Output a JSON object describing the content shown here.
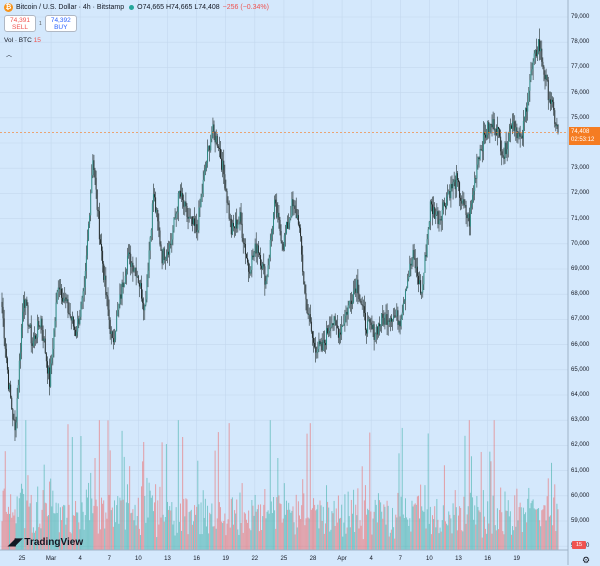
{
  "header": {
    "title": "Bitcoin / U.S. Dollar · 4h · Bitstamp",
    "logo_glyph": "₿",
    "ohlc": "O74,665 H74,665 L74,408",
    "change": "−256 (−0.34%)"
  },
  "trade": {
    "sell_price": "74,391",
    "sell_label": "SELL",
    "spread": "1",
    "buy_price": "74,392",
    "buy_label": "BUY"
  },
  "volume_legend": {
    "label": "Vol · BTC",
    "value": "15"
  },
  "last_price": {
    "value": "74,408",
    "countdown": "02:53:12"
  },
  "volume_badge": "15",
  "branding": "TradingView",
  "colors": {
    "up": "#26a69a",
    "down": "#ef5350",
    "background": "#d4e8fc",
    "price_marker": "#f57c22"
  },
  "icons": [
    "bitcoin-logo-icon",
    "collapse-caret-icon",
    "tradingview-logo-icon",
    "settings-gear-icon"
  ],
  "chart_data": {
    "type": "candlestick",
    "y_ticks": [
      "79,000",
      "78,000",
      "77,000",
      "76,000",
      "75,000",
      "74,000",
      "73,000",
      "72,000",
      "71,000",
      "70,000",
      "69,000",
      "68,000",
      "67,000",
      "66,000",
      "65,000",
      "64,000",
      "63,000",
      "62,000",
      "61,000",
      "60,000",
      "59,000",
      "58,000"
    ],
    "x_ticks": [
      "25",
      "Mar",
      "4",
      "7",
      "10",
      "13",
      "16",
      "19",
      "22",
      "25",
      "28",
      "Apr",
      "4",
      "7",
      "10",
      "13",
      "16",
      "19"
    ],
    "ylim": [
      58000,
      79200
    ],
    "price_path": [
      [
        0,
        67500
      ],
      [
        1.5,
        64500
      ],
      [
        3,
        62500
      ],
      [
        5,
        68000
      ],
      [
        7,
        66000
      ],
      [
        9,
        67000
      ],
      [
        11,
        64500
      ],
      [
        13,
        68500
      ],
      [
        15,
        67500
      ],
      [
        17,
        66500
      ],
      [
        19,
        68000
      ],
      [
        21,
        73500
      ],
      [
        22.5,
        70500
      ],
      [
        24,
        68000
      ],
      [
        25.5,
        66000
      ],
      [
        27,
        67500
      ],
      [
        29,
        69500
      ],
      [
        31,
        69000
      ],
      [
        33,
        67500
      ],
      [
        35,
        72000
      ],
      [
        37,
        69500
      ],
      [
        39,
        70000
      ],
      [
        41,
        72000
      ],
      [
        43,
        71000
      ],
      [
        45,
        70500
      ],
      [
        47,
        73000
      ],
      [
        48.5,
        74500
      ],
      [
        50,
        74000
      ],
      [
        51.5,
        72500
      ],
      [
        53,
        70500
      ],
      [
        55,
        71000
      ],
      [
        57,
        69000
      ],
      [
        59,
        70000
      ],
      [
        61,
        68500
      ],
      [
        63,
        71500
      ],
      [
        65,
        70000
      ],
      [
        67,
        71500
      ],
      [
        68.5,
        71000
      ],
      [
        70,
        68000
      ],
      [
        72,
        66000
      ],
      [
        74,
        65800
      ],
      [
        76,
        67000
      ],
      [
        78,
        66500
      ],
      [
        80,
        67500
      ],
      [
        82,
        68500
      ],
      [
        84,
        66800
      ],
      [
        86,
        66500
      ],
      [
        88,
        67000
      ],
      [
        90,
        67200
      ],
      [
        92,
        67000
      ],
      [
        93.5,
        68500
      ],
      [
        95,
        69500
      ],
      [
        97,
        68000
      ],
      [
        99,
        71500
      ],
      [
        101,
        71000
      ],
      [
        103,
        72000
      ],
      [
        105,
        72500
      ],
      [
        106.5,
        71500
      ],
      [
        108,
        70900
      ],
      [
        110,
        73500
      ],
      [
        112,
        74500
      ],
      [
        114,
        74800
      ],
      [
        116,
        73500
      ],
      [
        118,
        75000
      ],
      [
        120,
        74000
      ],
      [
        122,
        76500
      ],
      [
        124,
        78000
      ],
      [
        126,
        76200
      ],
      [
        127,
        75500
      ],
      [
        128.5,
        74400
      ]
    ],
    "volume_ceiling": 63000,
    "last_price": 74408,
    "grid": true
  }
}
